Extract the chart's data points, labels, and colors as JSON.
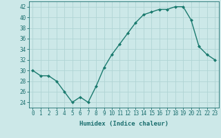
{
  "x": [
    0,
    1,
    2,
    3,
    4,
    5,
    6,
    7,
    8,
    9,
    10,
    11,
    12,
    13,
    14,
    15,
    16,
    17,
    18,
    19,
    20,
    21,
    22,
    23
  ],
  "y": [
    30,
    29,
    29,
    28,
    26,
    24,
    25,
    24,
    27,
    30.5,
    33,
    35,
    37,
    39,
    40.5,
    41,
    41.5,
    41.5,
    42,
    42,
    39.5,
    34.5,
    33,
    32
  ],
  "line_color": "#1a7a6e",
  "marker": "D",
  "marker_size": 2.0,
  "bg_color": "#cce8e8",
  "grid_color": "#b0d4d4",
  "xlabel": "Humidex (Indice chaleur)",
  "ylim": [
    23,
    43
  ],
  "xlim": [
    -0.5,
    23.5
  ],
  "yticks": [
    24,
    26,
    28,
    30,
    32,
    34,
    36,
    38,
    40,
    42
  ],
  "xticks": [
    0,
    1,
    2,
    3,
    4,
    5,
    6,
    7,
    8,
    9,
    10,
    11,
    12,
    13,
    14,
    15,
    16,
    17,
    18,
    19,
    20,
    21,
    22,
    23
  ],
  "tick_color": "#1a6e6e",
  "label_fontsize": 6.5,
  "tick_fontsize": 5.5,
  "line_width": 1.0
}
